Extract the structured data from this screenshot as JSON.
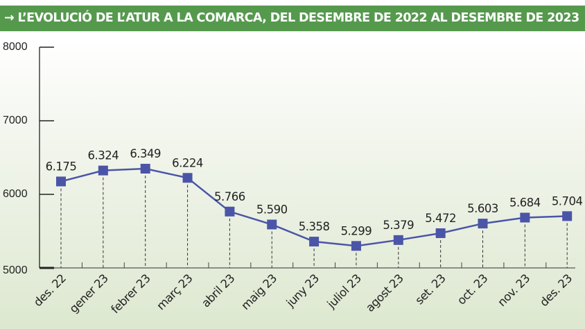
{
  "chart_data": {
    "type": "line",
    "title": "→ L’EVOLUCIÓ DE L’ATUR A LA COMARCA, DEL DESEMBRE DE 2022 AL DESEMBRE DE 2023",
    "categories": [
      "des. 22",
      "gener 23",
      "febrer 23",
      "març 23",
      "abril 23",
      "maig 23",
      "juny 23",
      "juliol 23",
      "agost 23",
      "set. 23",
      "oct. 23",
      "nov. 23",
      "des. 23"
    ],
    "values": [
      6175,
      6324,
      6349,
      6224,
      5766,
      5590,
      5358,
      5299,
      5379,
      5472,
      5603,
      5684,
      5704
    ],
    "data_labels": [
      "6.175",
      "6.324",
      "6.349",
      "6.224",
      "5.766",
      "5.590",
      "5.358",
      "5.299",
      "5.379",
      "5.472",
      "5.603",
      "5.684",
      "5.704"
    ],
    "yticks": [
      "5000",
      "6000",
      "7000",
      "8000"
    ],
    "ylim": [
      5000,
      8000
    ],
    "xlabel": "",
    "ylabel": "",
    "grid": false,
    "colors": {
      "line": "#4b55a8",
      "marker": "#4b55a8",
      "header": "#55994d"
    }
  }
}
